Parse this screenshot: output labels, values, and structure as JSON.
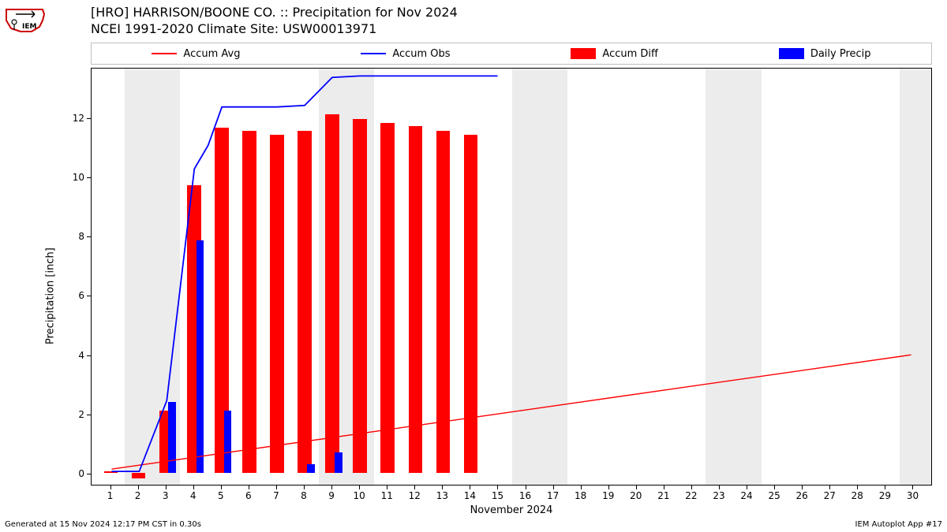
{
  "title": {
    "line1": "[HRO] HARRISON/BOONE CO. :: Precipitation for Nov 2024",
    "line2": "NCEI 1991-2020 Climate Site: USW00013971"
  },
  "legend": {
    "items": [
      {
        "label": "Accum Avg",
        "type": "line",
        "color": "#ff0000"
      },
      {
        "label": "Accum Obs",
        "type": "line",
        "color": "#0000ff"
      },
      {
        "label": "Accum Diff",
        "type": "patch",
        "color": "#ff0000"
      },
      {
        "label": "Daily Precip",
        "type": "patch",
        "color": "#0000ff"
      }
    ]
  },
  "chart": {
    "type": "bar+line",
    "background_color": "#ffffff",
    "weekend_band_color": "#ececec",
    "ylim": [
      -0.4,
      13.7
    ],
    "yticks": [
      0,
      2,
      4,
      6,
      8,
      10,
      12
    ],
    "ylabel": "Precipitation [inch]",
    "xlim": [
      0.3,
      30.7
    ],
    "xticks": [
      1,
      2,
      3,
      4,
      5,
      6,
      7,
      8,
      9,
      10,
      11,
      12,
      13,
      14,
      15,
      16,
      17,
      18,
      19,
      20,
      21,
      22,
      23,
      24,
      25,
      26,
      27,
      28,
      29,
      30
    ],
    "xlabel": "November 2024",
    "weekend_bands": [
      [
        1.5,
        3.5
      ],
      [
        8.5,
        10.5
      ],
      [
        15.5,
        17.5
      ],
      [
        22.5,
        24.5
      ],
      [
        29.5,
        30.7
      ]
    ],
    "bar_width": 0.5,
    "accum_diff": {
      "color": "#ff0000",
      "x": [
        1,
        2,
        3,
        4,
        5,
        6,
        7,
        8,
        9,
        10,
        11,
        12,
        13,
        14
      ],
      "y": [
        0.05,
        -0.2,
        2.1,
        9.7,
        11.65,
        11.55,
        11.4,
        11.55,
        12.1,
        11.95,
        11.8,
        11.7,
        11.55,
        11.4
      ]
    },
    "daily_precip": {
      "color": "#0000ff",
      "bar_width": 0.28,
      "x": [
        3,
        4,
        5,
        8,
        9
      ],
      "y": [
        2.4,
        7.85,
        2.1,
        0.3,
        0.7
      ]
    },
    "accum_avg_line": {
      "color": "#ff0000",
      "linewidth": 1.4,
      "x": [
        1,
        30
      ],
      "y": [
        0.13,
        4.0
      ]
    },
    "accum_obs_line": {
      "color": "#0000ff",
      "linewidth": 1.8,
      "x": [
        1,
        2,
        3,
        4,
        4.5,
        5,
        6,
        7,
        8,
        9,
        10,
        15
      ],
      "y": [
        0.05,
        0.05,
        2.45,
        10.3,
        11.1,
        12.4,
        12.4,
        12.4,
        12.45,
        13.4,
        13.45,
        13.45
      ]
    }
  },
  "footer": {
    "left": "Generated at 15 Nov 2024 12:17 PM CST in 0.30s",
    "right": "IEM Autoplot App #17"
  }
}
